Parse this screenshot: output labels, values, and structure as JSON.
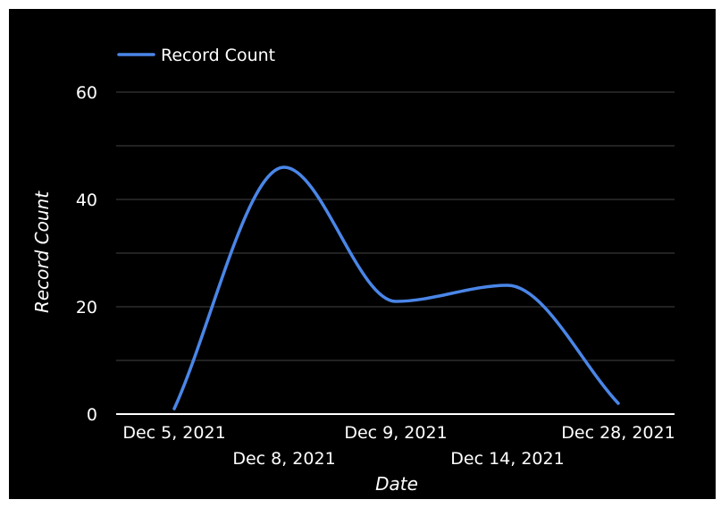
{
  "chart_data": {
    "type": "line",
    "categories": [
      "Dec 5, 2021",
      "Dec 8, 2021",
      "Dec 9, 2021",
      "Dec 14, 2021",
      "Dec 28, 2021"
    ],
    "series": [
      {
        "name": "Record Count",
        "values": [
          1,
          46,
          21,
          24,
          2
        ],
        "color": "#4a86e8"
      }
    ],
    "xlabel": "Date",
    "ylabel": "Record Count",
    "ylim": [
      0,
      70
    ],
    "yticks": [
      0,
      20,
      40,
      60
    ],
    "grid": true,
    "legend": "top-left",
    "smooth": true
  }
}
